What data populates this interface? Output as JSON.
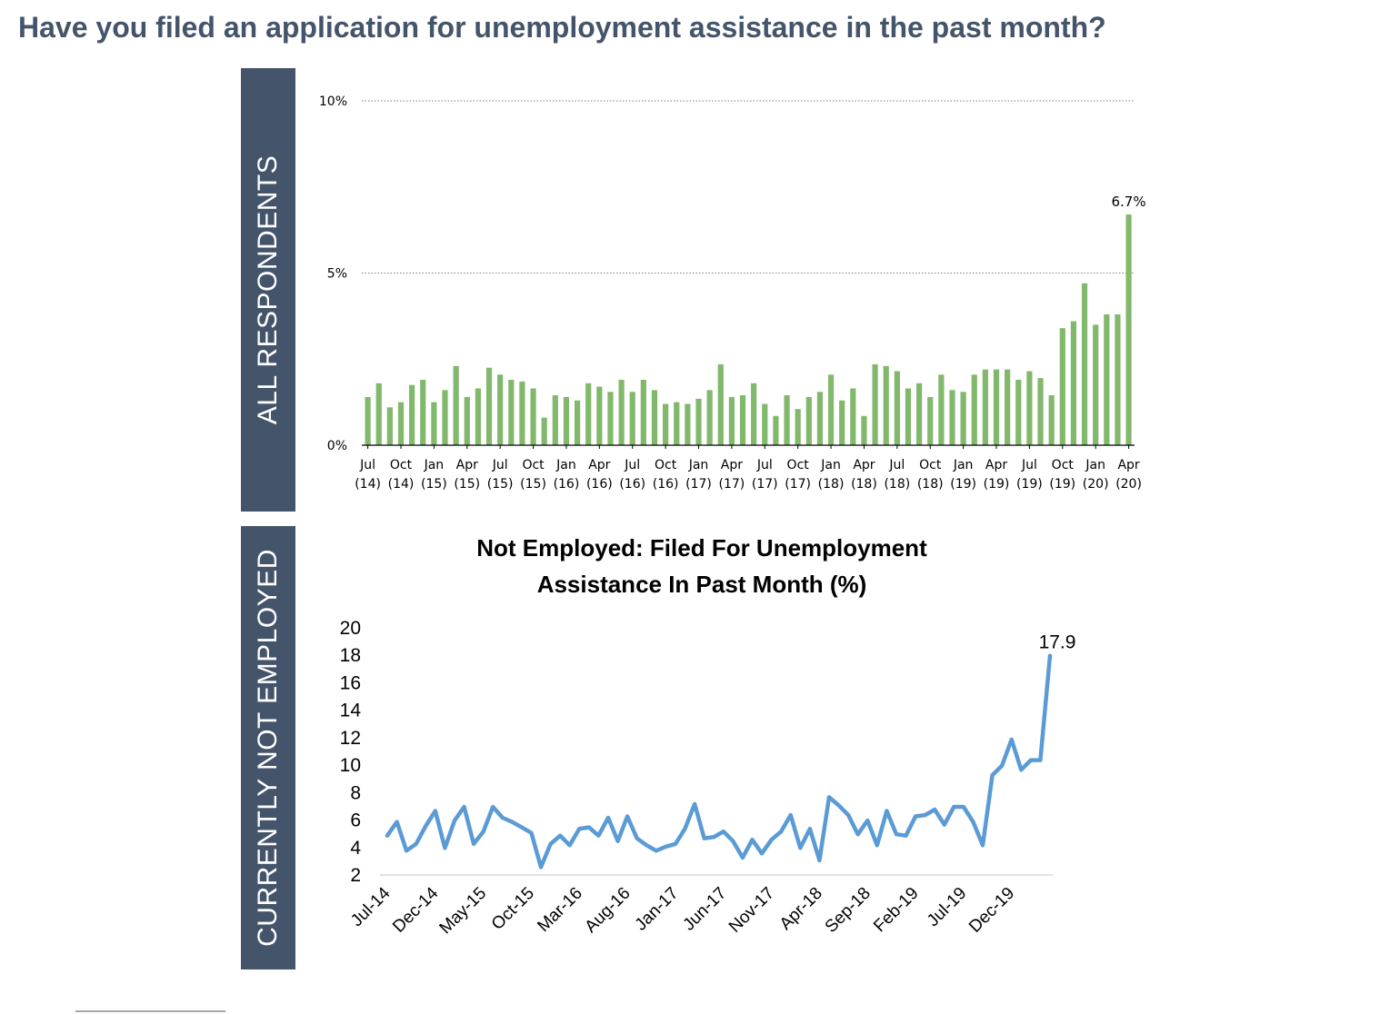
{
  "page": {
    "title": "Have you filed an application for unemployment assistance in the past month?"
  },
  "panels": {
    "top_label": "ALL RESPONDENTS",
    "bottom_label": "CURRENTLY NOT EMPLOYED"
  },
  "colors": {
    "header": "#44546a",
    "bar": "#82b86c",
    "line": "#5b9bd5"
  },
  "chart_data": [
    {
      "type": "bar",
      "title": "",
      "xlabel": "",
      "ylabel": "",
      "ylim": [
        0,
        10
      ],
      "yticks": [
        "0%",
        "5%",
        "10%"
      ],
      "grid": "dotted horizontal at 5% and 10%",
      "x_tick_labels": [
        [
          "Jul",
          "(14)"
        ],
        [
          "Oct",
          "(14)"
        ],
        [
          "Jan",
          "(15)"
        ],
        [
          "Apr",
          "(15)"
        ],
        [
          "Jul",
          "(15)"
        ],
        [
          "Oct",
          "(15)"
        ],
        [
          "Jan",
          "(16)"
        ],
        [
          "Apr",
          "(16)"
        ],
        [
          "Jul",
          "(16)"
        ],
        [
          "Oct",
          "(16)"
        ],
        [
          "Jan",
          "(17)"
        ],
        [
          "Apr",
          "(17)"
        ],
        [
          "Jul",
          "(17)"
        ],
        [
          "Oct",
          "(17)"
        ],
        [
          "Jan",
          "(18)"
        ],
        [
          "Apr",
          "(18)"
        ],
        [
          "Jul",
          "(18)"
        ],
        [
          "Oct",
          "(18)"
        ],
        [
          "Jan",
          "(19)"
        ],
        [
          "Apr",
          "(19)"
        ],
        [
          "Jul",
          "(19)"
        ],
        [
          "Oct",
          "(19)"
        ],
        [
          "Jan",
          "(20)"
        ],
        [
          "Apr",
          "(20)"
        ]
      ],
      "values": [
        1.4,
        1.8,
        1.1,
        1.25,
        1.75,
        1.9,
        1.25,
        1.6,
        2.3,
        1.4,
        1.65,
        2.25,
        2.05,
        1.9,
        1.85,
        1.65,
        0.8,
        1.45,
        1.4,
        1.3,
        1.8,
        1.7,
        1.55,
        1.9,
        1.55,
        1.9,
        1.6,
        1.2,
        1.25,
        1.2,
        1.35,
        1.6,
        2.35,
        1.4,
        1.45,
        1.8,
        1.2,
        0.85,
        1.45,
        1.05,
        1.4,
        1.55,
        2.05,
        1.3,
        1.65,
        0.85,
        2.35,
        2.3,
        2.15,
        1.65,
        1.8,
        1.4,
        2.05,
        1.6,
        1.55,
        2.05,
        2.2,
        2.2,
        2.2,
        1.9,
        2.15,
        1.95,
        1.45,
        3.4,
        3.6,
        4.7,
        3.5,
        3.8,
        3.8,
        6.7
      ],
      "annotation": "6.7%"
    },
    {
      "type": "line",
      "title": "Not Employed: Filed For Unemployment Assistance In Past Month (%)",
      "xlabel": "",
      "ylabel": "",
      "ylim": [
        2,
        20
      ],
      "yticks": [
        "2",
        "4",
        "6",
        "8",
        "10",
        "12",
        "14",
        "16",
        "18",
        "20"
      ],
      "x_tick_labels": [
        "Jul-14",
        "Dec-14",
        "May-15",
        "Oct-15",
        "Mar-16",
        "Aug-16",
        "Jan-17",
        "Jun-17",
        "Nov-17",
        "Apr-18",
        "Sep-18",
        "Feb-19",
        "Jul-19",
        "Dec-19"
      ],
      "values": [
        4.8,
        5.8,
        3.7,
        4.2,
        5.5,
        6.6,
        3.9,
        5.9,
        6.9,
        4.2,
        5.1,
        6.9,
        6.1,
        5.8,
        5.4,
        5.0,
        2.5,
        4.2,
        4.8,
        4.1,
        5.3,
        5.4,
        4.8,
        6.1,
        4.4,
        6.2,
        4.6,
        4.1,
        3.7,
        4.0,
        4.2,
        5.3,
        7.1,
        4.6,
        4.7,
        5.1,
        4.4,
        3.2,
        4.5,
        3.5,
        4.5,
        5.1,
        6.3,
        3.9,
        5.3,
        3.0,
        7.6,
        7.0,
        6.3,
        4.9,
        5.9,
        4.1,
        6.6,
        4.9,
        4.8,
        6.2,
        6.3,
        6.7,
        5.6,
        6.9,
        6.9,
        5.8,
        4.1,
        9.2,
        9.9,
        11.8,
        9.6,
        10.3,
        10.3,
        17.9
      ],
      "annotation": "17.9"
    }
  ]
}
